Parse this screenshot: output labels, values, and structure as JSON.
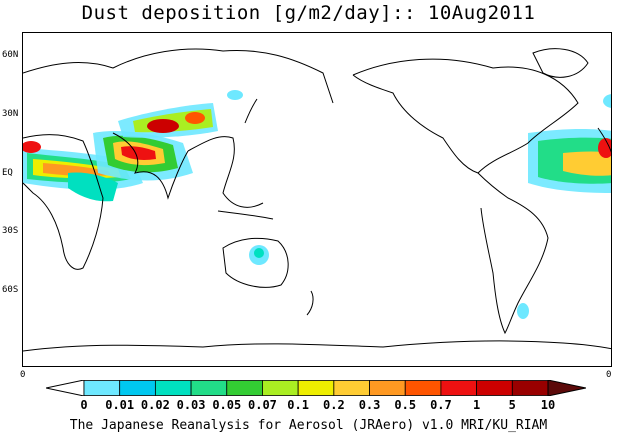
{
  "header": {
    "title": "Dust deposition [g/m2/day]:: 10Aug2011"
  },
  "map": {
    "lat_labels": [
      "60N",
      "30N",
      "EQ",
      "30S",
      "60S"
    ],
    "axis_left_zero": "0",
    "axis_right_zero": "0"
  },
  "colorbar": {
    "labels": [
      "0",
      "0.01",
      "0.02",
      "0.03",
      "0.05",
      "0.07",
      "0.1",
      "0.2",
      "0.3",
      "0.5",
      "0.7",
      "1",
      "5",
      "10"
    ],
    "colors": [
      "#ffffff",
      "#6ee8ff",
      "#00c8f0",
      "#00e0c0",
      "#22dd88",
      "#33cc33",
      "#aaee22",
      "#eeee00",
      "#ffcc33",
      "#ff9922",
      "#ff5500",
      "#ee1111",
      "#cc0000",
      "#990000",
      "#5c0a0a"
    ]
  },
  "footer": {
    "credit": "The Japanese Reanalysis for Aerosol (JRAero) v1.0 MRI/KU_RIAM"
  }
}
